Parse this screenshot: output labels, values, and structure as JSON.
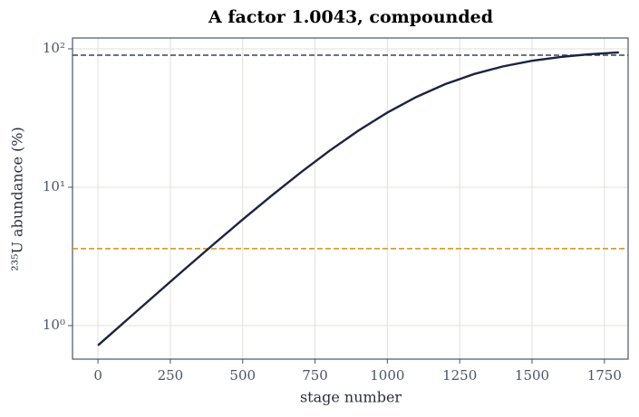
{
  "chart_data": {
    "type": "line",
    "title": "A factor 1.0043, compounded",
    "xlabel": "stage number",
    "ylabel": "²³⁵U abundance (%)",
    "x": [
      0,
      100,
      200,
      300,
      400,
      500,
      600,
      700,
      800,
      900,
      1000,
      1100,
      1200,
      1300,
      1400,
      1500,
      1600,
      1700,
      1800
    ],
    "series": [
      {
        "name": "abundance",
        "color": "#1b2340",
        "values": [
          0.72,
          1.1,
          1.68,
          2.56,
          3.88,
          5.84,
          8.69,
          12.75,
          18.33,
          25.64,
          34.63,
          44.86,
          55.54,
          65.74,
          74.67,
          81.9,
          87.42,
          91.44,
          94.25
        ]
      }
    ],
    "hlines": [
      {
        "value": 90,
        "color": "#3b4458"
      },
      {
        "value": 3.6,
        "color": "#d4901c"
      }
    ],
    "xlim": [
      -88,
      1832
    ],
    "xticks": [
      0,
      250,
      500,
      750,
      1000,
      1250,
      1500,
      1750
    ],
    "ylim": [
      0.573,
      119.7
    ],
    "yscale": "log",
    "yticks": [
      {
        "value": 1,
        "label": "10⁰"
      },
      {
        "value": 10,
        "label": "10¹"
      },
      {
        "value": 100,
        "label": "10²"
      }
    ],
    "grid": true
  }
}
